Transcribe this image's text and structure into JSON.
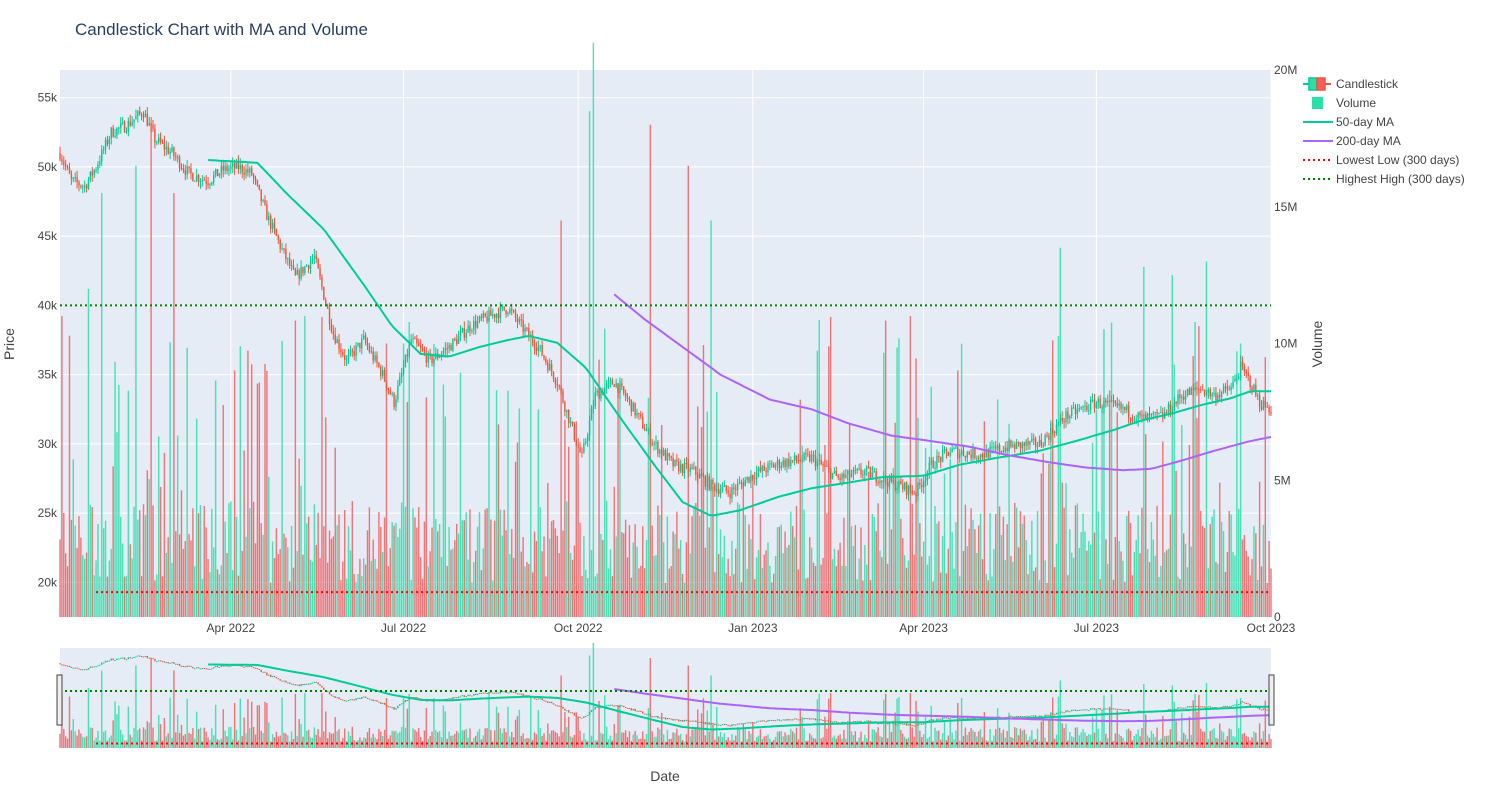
{
  "colors": {
    "plot_bg": "#e5ecf6",
    "grid": "#ffffff",
    "up": "#00cc96",
    "down": "#ef553b",
    "vol_up": "#2bdfa8",
    "vol_down": "#f06060",
    "ma50": "#00cc96",
    "ma200": "#ab63fa",
    "lowest": "#ff0000",
    "highest": "#008000",
    "text": "#444444",
    "title": "#2a3f5f"
  },
  "chart_data": {
    "type": "candlestick",
    "title": "Candlestick Chart with MA and Volume",
    "xlabel": "Date",
    "ylabel": "Price",
    "y2label": "Volume",
    "xrange": [
      "2022-01-01",
      "2023-10-01"
    ],
    "ylim": [
      17500,
      57000
    ],
    "y2lim": [
      0,
      20000000
    ],
    "x_ticks": [
      {
        "date": "2022-04-01",
        "label": "Apr 2022"
      },
      {
        "date": "2022-07-01",
        "label": "Jul 2022"
      },
      {
        "date": "2022-10-01",
        "label": "Oct 2022"
      },
      {
        "date": "2023-01-01",
        "label": "Jan 2023"
      },
      {
        "date": "2023-04-01",
        "label": "Apr 2023"
      },
      {
        "date": "2023-07-01",
        "label": "Jul 2023"
      },
      {
        "date": "2023-10-01",
        "label": "Oct 2023"
      }
    ],
    "y_ticks": [
      {
        "value": 20000,
        "label": "20k"
      },
      {
        "value": 25000,
        "label": "25k"
      },
      {
        "value": 30000,
        "label": "30k"
      },
      {
        "value": 35000,
        "label": "35k"
      },
      {
        "value": 40000,
        "label": "40k"
      },
      {
        "value": 45000,
        "label": "45k"
      },
      {
        "value": 50000,
        "label": "50k"
      },
      {
        "value": 55000,
        "label": "55k"
      }
    ],
    "y2_ticks": [
      {
        "value": 0,
        "label": "0"
      },
      {
        "value": 5000000,
        "label": "5M"
      },
      {
        "value": 10000000,
        "label": "10M"
      },
      {
        "value": 15000000,
        "label": "15M"
      },
      {
        "value": 20000000,
        "label": "20M"
      }
    ],
    "price_path": [
      [
        "2022-01-01",
        51000
      ],
      [
        "2022-01-07",
        49000
      ],
      [
        "2022-01-14",
        48600
      ],
      [
        "2022-01-20",
        50000
      ],
      [
        "2022-01-28",
        52500
      ],
      [
        "2022-02-05",
        53000
      ],
      [
        "2022-02-14",
        54000
      ],
      [
        "2022-02-20",
        52000
      ],
      [
        "2022-03-01",
        51000
      ],
      [
        "2022-03-10",
        49500
      ],
      [
        "2022-03-20",
        49000
      ],
      [
        "2022-03-28",
        49800
      ],
      [
        "2022-04-05",
        50000
      ],
      [
        "2022-04-12",
        49500
      ],
      [
        "2022-04-20",
        46500
      ],
      [
        "2022-04-28",
        44000
      ],
      [
        "2022-05-05",
        42000
      ],
      [
        "2022-05-15",
        43500
      ],
      [
        "2022-05-25",
        38000
      ],
      [
        "2022-06-01",
        36000
      ],
      [
        "2022-06-10",
        37500
      ],
      [
        "2022-06-20",
        35000
      ],
      [
        "2022-06-26",
        33000
      ],
      [
        "2022-07-05",
        37500
      ],
      [
        "2022-07-15",
        36000
      ],
      [
        "2022-07-25",
        37000
      ],
      [
        "2022-08-05",
        38500
      ],
      [
        "2022-08-15",
        39200
      ],
      [
        "2022-08-25",
        39800
      ],
      [
        "2022-09-01",
        38500
      ],
      [
        "2022-09-10",
        37000
      ],
      [
        "2022-09-20",
        34500
      ],
      [
        "2022-09-28",
        31000
      ],
      [
        "2022-10-03",
        29000
      ],
      [
        "2022-10-10",
        33500
      ],
      [
        "2022-10-20",
        34500
      ],
      [
        "2022-10-28",
        33000
      ],
      [
        "2022-11-10",
        30000
      ],
      [
        "2022-11-20",
        28500
      ],
      [
        "2022-12-01",
        28000
      ],
      [
        "2022-12-10",
        27000
      ],
      [
        "2022-12-20",
        26500
      ],
      [
        "2023-01-01",
        27800
      ],
      [
        "2023-01-15",
        28600
      ],
      [
        "2023-02-01",
        29000
      ],
      [
        "2023-02-15",
        27500
      ],
      [
        "2023-03-01",
        28000
      ],
      [
        "2023-03-15",
        27200
      ],
      [
        "2023-03-28",
        26500
      ],
      [
        "2023-04-05",
        28500
      ],
      [
        "2023-04-15",
        29500
      ],
      [
        "2023-05-01",
        29200
      ],
      [
        "2023-05-15",
        29800
      ],
      [
        "2023-06-01",
        30000
      ],
      [
        "2023-06-15",
        32000
      ],
      [
        "2023-07-01",
        33000
      ],
      [
        "2023-07-15",
        32500
      ],
      [
        "2023-07-25",
        31800
      ],
      [
        "2023-08-05",
        32000
      ],
      [
        "2023-08-15",
        33500
      ],
      [
        "2023-08-25",
        34000
      ],
      [
        "2023-09-01",
        33500
      ],
      [
        "2023-09-10",
        34000
      ],
      [
        "2023-09-15",
        35500
      ],
      [
        "2023-09-20",
        34500
      ],
      [
        "2023-09-25",
        33000
      ],
      [
        "2023-10-01",
        32500
      ]
    ],
    "ma50_path": [
      [
        "2022-03-20",
        50500
      ],
      [
        "2022-04-15",
        50300
      ],
      [
        "2022-05-01",
        48000
      ],
      [
        "2022-05-20",
        45500
      ],
      [
        "2022-06-10",
        41500
      ],
      [
        "2022-06-25",
        38500
      ],
      [
        "2022-07-10",
        36500
      ],
      [
        "2022-07-25",
        36300
      ],
      [
        "2022-08-10",
        37000
      ],
      [
        "2022-08-25",
        37500
      ],
      [
        "2022-09-05",
        37800
      ],
      [
        "2022-09-20",
        37300
      ],
      [
        "2022-10-05",
        35500
      ],
      [
        "2022-10-20",
        32500
      ],
      [
        "2022-11-10",
        28500
      ],
      [
        "2022-11-25",
        25800
      ],
      [
        "2022-12-10",
        24800
      ],
      [
        "2022-12-25",
        25200
      ],
      [
        "2023-01-15",
        26200
      ],
      [
        "2023-02-01",
        26800
      ],
      [
        "2023-02-20",
        27200
      ],
      [
        "2023-03-10",
        27600
      ],
      [
        "2023-04-01",
        27700
      ],
      [
        "2023-04-20",
        28500
      ],
      [
        "2023-05-10",
        29000
      ],
      [
        "2023-06-01",
        29500
      ],
      [
        "2023-06-20",
        30200
      ],
      [
        "2023-07-10",
        31000
      ],
      [
        "2023-07-25",
        31700
      ],
      [
        "2023-08-10",
        32200
      ],
      [
        "2023-08-25",
        32800
      ],
      [
        "2023-09-10",
        33300
      ],
      [
        "2023-09-20",
        33800
      ],
      [
        "2023-10-01",
        33800
      ]
    ],
    "ma200_path": [
      [
        "2022-10-20",
        40800
      ],
      [
        "2022-11-05",
        39000
      ],
      [
        "2022-11-25",
        37000
      ],
      [
        "2022-12-15",
        35000
      ],
      [
        "2023-01-10",
        33200
      ],
      [
        "2023-02-01",
        32500
      ],
      [
        "2023-02-20",
        31500
      ],
      [
        "2023-03-15",
        30600
      ],
      [
        "2023-04-05",
        30200
      ],
      [
        "2023-04-25",
        29800
      ],
      [
        "2023-05-15",
        29200
      ],
      [
        "2023-06-05",
        28700
      ],
      [
        "2023-06-25",
        28300
      ],
      [
        "2023-07-15",
        28100
      ],
      [
        "2023-07-30",
        28200
      ],
      [
        "2023-08-15",
        28800
      ],
      [
        "2023-09-01",
        29500
      ],
      [
        "2023-09-20",
        30200
      ],
      [
        "2023-10-01",
        30500
      ]
    ],
    "volume_baseline": 2500000,
    "volume_spikes": [
      [
        "2022-01-02",
        11000000
      ],
      [
        "2022-01-16",
        12000000
      ],
      [
        "2022-01-23",
        15500000
      ],
      [
        "2022-02-10",
        16500000
      ],
      [
        "2022-02-18",
        18000000
      ],
      [
        "2022-03-02",
        15500000
      ],
      [
        "2022-04-20",
        9000000
      ],
      [
        "2022-05-10",
        11000000
      ],
      [
        "2022-06-22",
        10000000
      ],
      [
        "2022-07-22",
        8500000
      ],
      [
        "2022-09-22",
        14500000
      ],
      [
        "2022-10-07",
        18500000
      ],
      [
        "2022-10-09",
        21000000
      ],
      [
        "2022-11-08",
        18000000
      ],
      [
        "2022-11-28",
        16500000
      ],
      [
        "2022-12-10",
        14500000
      ],
      [
        "2023-03-25",
        11000000
      ],
      [
        "2023-06-12",
        13500000
      ],
      [
        "2023-07-26",
        12800000
      ],
      [
        "2023-08-10",
        12500000
      ],
      [
        "2023-08-28",
        13000000
      ],
      [
        "2023-09-15",
        10000000
      ],
      [
        "2023-09-28",
        9500000
      ]
    ],
    "lowest_low": 19300,
    "highest_high": 40000,
    "legend_position": "top-right",
    "series": [
      {
        "name": "Candlestick",
        "type": "candlestick"
      },
      {
        "name": "Volume",
        "type": "bar"
      },
      {
        "name": "50-day MA",
        "type": "line"
      },
      {
        "name": "200-day MA",
        "type": "line"
      },
      {
        "name": "Lowest Low (300 days)",
        "type": "hline-dotted"
      },
      {
        "name": "Highest High (300 days)",
        "type": "hline-dotted"
      }
    ],
    "range_slider": true
  }
}
